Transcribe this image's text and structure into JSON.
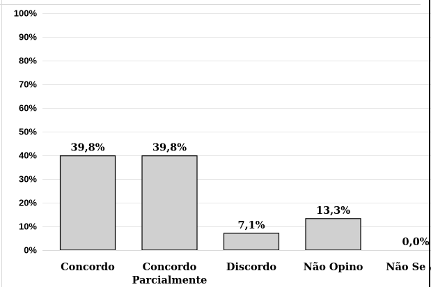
{
  "chart_data": {
    "type": "bar",
    "categories": [
      "Concordo",
      "Concordo Parcialmente",
      "Discordo",
      "Não Opino",
      "Não Se Ap"
    ],
    "category_lines": [
      [
        "Concordo"
      ],
      [
        "Concordo",
        "Parcialmente"
      ],
      [
        "Discordo"
      ],
      [
        "Não Opino"
      ],
      [
        "Não Se Ap"
      ]
    ],
    "values": [
      39.8,
      39.8,
      7.1,
      13.3,
      0.0
    ],
    "value_labels": [
      "39,8%",
      "39,8%",
      "7,1%",
      "13,3%",
      "0,0%"
    ],
    "ylim": [
      0,
      100
    ],
    "yticks": [
      0,
      10,
      20,
      30,
      40,
      50,
      60,
      70,
      80,
      90,
      100
    ],
    "ytick_labels": [
      "0%",
      "10%",
      "20%",
      "30%",
      "40%",
      "50%",
      "60%",
      "70%",
      "80%",
      "90%",
      "100%"
    ],
    "grid": true,
    "colors": {
      "bar_fill": "#d0d0d0",
      "bar_stroke": "#000000",
      "grid": "#e6e6e6",
      "axis": "#d9d9d9"
    }
  }
}
